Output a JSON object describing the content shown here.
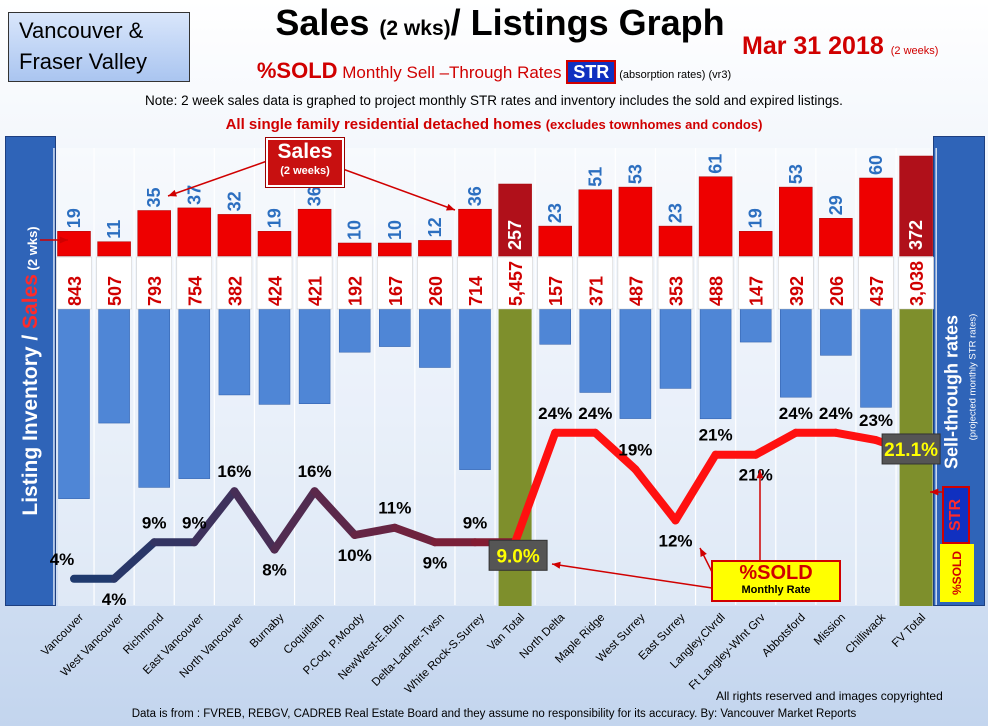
{
  "header": {
    "region_line1": "Vancouver &",
    "region_line2": "Fraser Valley",
    "title_main": "Sales ",
    "title_small": "(2 wks)",
    "title_rest": "/ Listings Graph",
    "date": "Mar 31 2018",
    "date_note": "(2 weeks)",
    "subtitle_sold": "%SOLD",
    "subtitle_text": " Monthly Sell –Through Rates ",
    "subtitle_str": "STR",
    "subtitle_note": " (absorption rates) (vr3)",
    "note": "Note: 2 week sales data is graphed to project monthly STR rates and inventory includes the sold and expired listings.",
    "scope_main": "All single family residential detached homes ",
    "scope_small": "(excludes townhomes and condos)"
  },
  "left_axis": {
    "part1": "Listing Inventory / ",
    "part2": "Sales",
    "part3": " (2 wks)"
  },
  "right_axis": {
    "label": "Sell-through rates",
    "sublabel": "(projected monthly STR rates)"
  },
  "badges": {
    "str": "STR",
    "sold": "%SOLD"
  },
  "callouts": {
    "sales_title": "Sales",
    "sales_sub": "(2 weeks)",
    "sold_title": "%SOLD",
    "sold_sub": "Monthly Rate"
  },
  "footer": {
    "copyright": "All rights reserved and  images copyrighted",
    "source": "Data is from : FVREB, REBGV, CADREB Real Estate Board and they assume no responsibility for its accuracy. By: Vancouver Market Reports"
  },
  "colors": {
    "sales": "#ee0000",
    "inventory": "#4f86d6",
    "total": "#7e8f2c",
    "total_sales": "#b0101a",
    "line_van": "#1f3a6e",
    "line_fv": "#ff1010"
  },
  "chart_data": {
    "type": "bar",
    "categories": [
      "Vancouver",
      "West Vancouver",
      "Richmond",
      "East Vancouver",
      "North Vancouver",
      "Burnaby",
      "Coquitlam",
      "P.Coq, P.Moody",
      "NewWest-E.Burn",
      "Delta-Ladner-Twsn",
      "White Rock-S.Surrey",
      "Van Total",
      "North Delta",
      "Maple Ridge",
      "West Surrey",
      "East Surrey",
      "Langley,Clvrdl",
      "Ft Langley-Wlnt Grv",
      "Abbotsford",
      "Mission",
      "Chilliwack",
      "FV Total"
    ],
    "series": [
      {
        "name": "Sales",
        "values": [
          19,
          11,
          35,
          37,
          32,
          19,
          36,
          10,
          10,
          12,
          36,
          257,
          23,
          51,
          53,
          23,
          61,
          19,
          53,
          29,
          60,
          372
        ]
      },
      {
        "name": "Inventory",
        "values": [
          843,
          507,
          793,
          754,
          382,
          424,
          421,
          192,
          167,
          260,
          714,
          5457,
          157,
          371,
          487,
          353,
          488,
          147,
          392,
          206,
          437,
          3038
        ]
      },
      {
        "name": "%SOLD",
        "values": [
          4,
          4,
          9,
          9,
          16,
          8,
          16,
          10,
          11,
          9,
          9,
          9.0,
          24,
          24,
          19,
          12,
          21,
          21,
          24,
          24,
          23,
          21.1
        ]
      }
    ],
    "sales_labels": [
      "19",
      "11",
      "35",
      "37",
      "32",
      "19",
      "36",
      "10",
      "10",
      "12",
      "36",
      "257",
      "23",
      "51",
      "53",
      "23",
      "61",
      "19",
      "53",
      "29",
      "60",
      "372"
    ],
    "inventory_labels": [
      "843",
      "507",
      "793",
      "754",
      "382",
      "424",
      "421",
      "192",
      "167",
      "260",
      "714",
      "5,457",
      "157",
      "371",
      "487",
      "353",
      "488",
      "147",
      "392",
      "206",
      "437",
      "3,038"
    ],
    "sold_labels": [
      "4%",
      "4%",
      "9%",
      "9%",
      "16%",
      "8%",
      "16%",
      "10%",
      "11%",
      "9%",
      "9%",
      "9.0%",
      "24%",
      "24%",
      "19%",
      "12%",
      "21%",
      "21%",
      "24%",
      "24%",
      "23%",
      "21.1%"
    ],
    "total_indices": [
      11,
      21
    ],
    "title": "Sales (2 wks)/ Listings Graph"
  }
}
